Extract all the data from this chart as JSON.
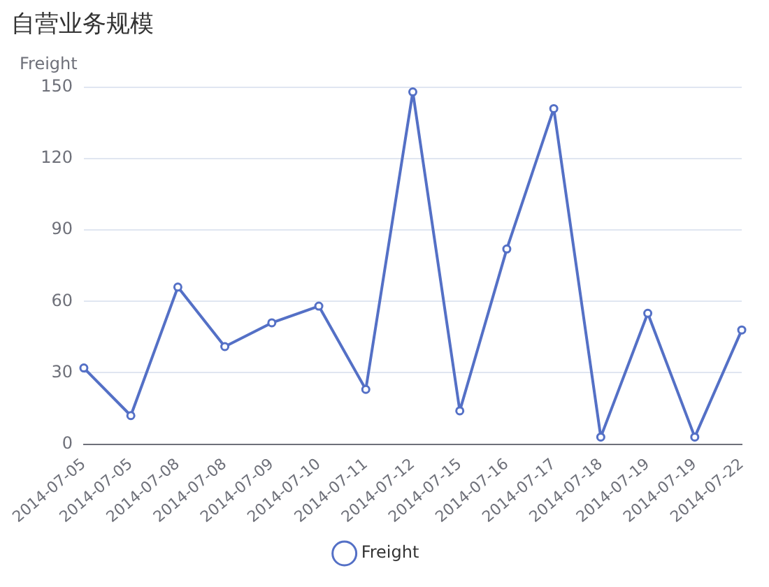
{
  "chart_data": {
    "type": "line",
    "title": "自营业务规模",
    "ylabel": "Freight",
    "categories": [
      "2014-07-05",
      "2014-07-05",
      "2014-07-08",
      "2014-07-08",
      "2014-07-09",
      "2014-07-10",
      "2014-07-11",
      "2014-07-12",
      "2014-07-15",
      "2014-07-16",
      "2014-07-17",
      "2014-07-18",
      "2014-07-19",
      "2014-07-19",
      "2014-07-22"
    ],
    "series": [
      {
        "name": "Freight",
        "color": "#5470c6",
        "values": [
          32,
          12,
          66,
          41,
          51,
          58,
          23,
          148,
          14,
          82,
          141,
          3,
          55,
          3,
          48
        ]
      }
    ],
    "ylim": [
      0,
      150
    ],
    "yticks": [
      0,
      30,
      60,
      90,
      120,
      150
    ],
    "grid": "y",
    "legend": "bottom",
    "marker": "circle",
    "line_style": "solid"
  }
}
